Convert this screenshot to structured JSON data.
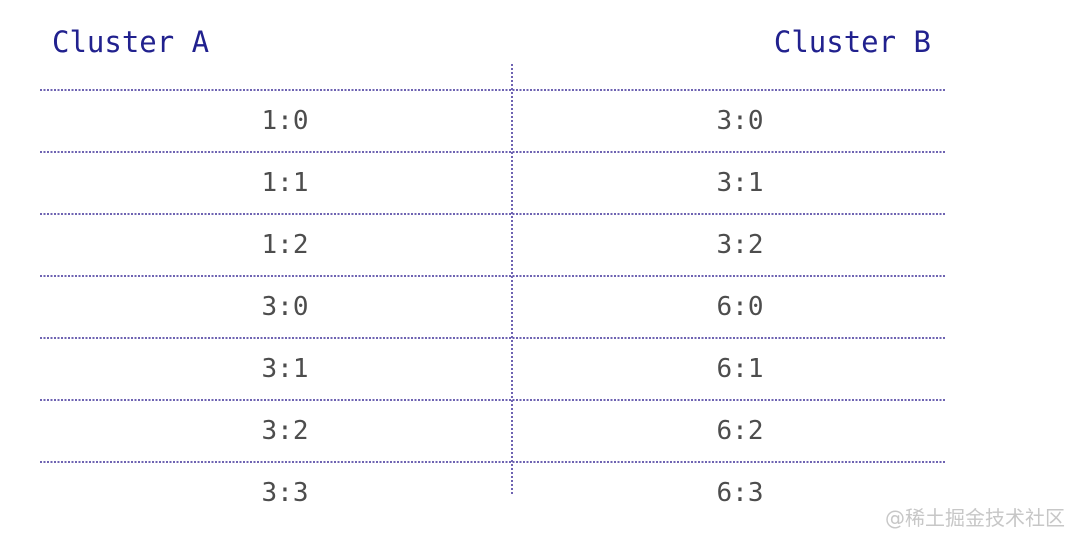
{
  "clusters": {
    "left": {
      "title": "Cluster A"
    },
    "right": {
      "title": "Cluster B"
    }
  },
  "rows": [
    {
      "left": "1:0",
      "right": "3:0"
    },
    {
      "left": "1:1",
      "right": "3:1"
    },
    {
      "left": "1:2",
      "right": "3:2"
    },
    {
      "left": "3:0",
      "right": "6:0"
    },
    {
      "left": "3:1",
      "right": "6:1"
    },
    {
      "left": "3:2",
      "right": "6:2"
    },
    {
      "left": "3:3",
      "right": "6:3"
    }
  ],
  "watermark": {
    "text": "@稀土掘金技术社区"
  },
  "colors": {
    "background": "#ffffff",
    "title_text": "#21218e",
    "row_text": "#4d4d4d",
    "dotted_line": "#6e63b2",
    "watermark_text": "#c7c7c7"
  }
}
